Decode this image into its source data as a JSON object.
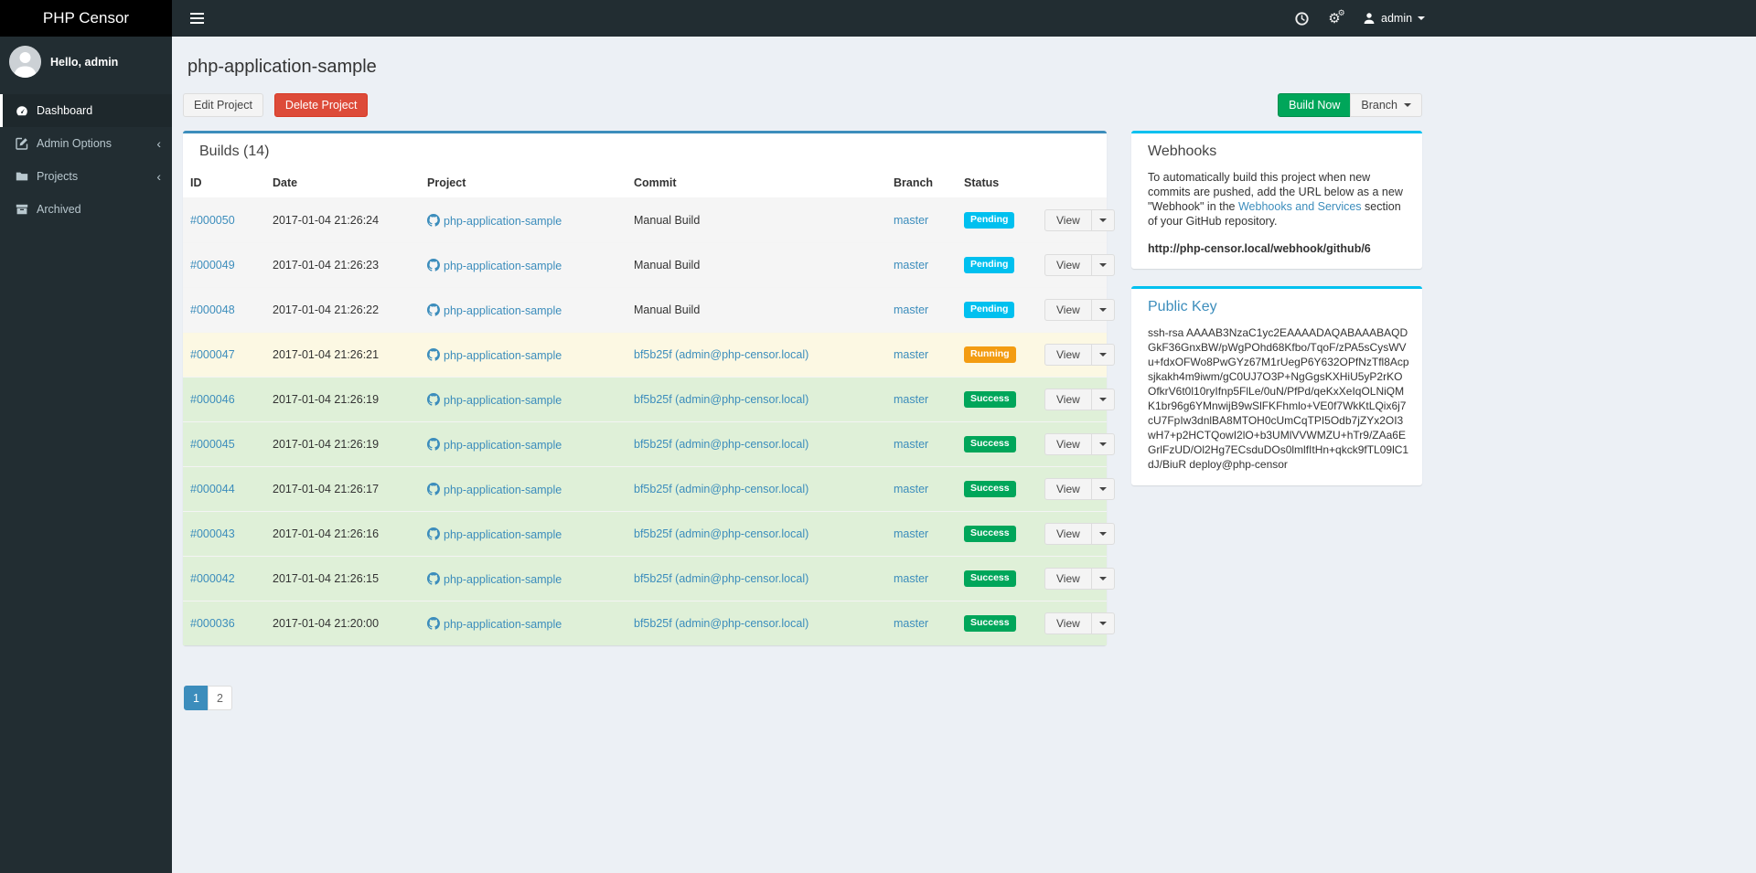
{
  "app": {
    "brand": "PHP Censor"
  },
  "navbar": {
    "user": "admin"
  },
  "sidebar": {
    "greeting": "Hello, admin",
    "items": [
      {
        "label": "Dashboard",
        "icon": "dashboard-icon",
        "active": true,
        "chevron": false
      },
      {
        "label": "Admin Options",
        "icon": "edit-icon",
        "active": false,
        "chevron": true
      },
      {
        "label": "Projects",
        "icon": "folder-icon",
        "active": false,
        "chevron": true
      },
      {
        "label": "Archived",
        "icon": "archive-icon",
        "active": false,
        "chevron": false
      }
    ]
  },
  "page": {
    "title": "php-application-sample",
    "edit_button": "Edit Project",
    "delete_button": "Delete Project",
    "build_now_button": "Build Now",
    "branch_button": "Branch"
  },
  "builds": {
    "panel_title": "Builds (14)",
    "columns": [
      "ID",
      "Date",
      "Project",
      "Commit",
      "Branch",
      "Status",
      ""
    ],
    "view_label": "View",
    "status_colors": {
      "Pending": "#00c0ef",
      "Running": "#f39c12",
      "Success": "#00a65a"
    },
    "row_colors": {
      "Pending": "#f5f5f5",
      "Running": "#fcf8e3",
      "Success": "#dff0d8"
    },
    "rows": [
      {
        "id": "#000050",
        "date": "2017-01-04 21:26:24",
        "project": "php-application-sample",
        "commit": "Manual Build",
        "commit_is_link": false,
        "branch": "master",
        "status": "Pending"
      },
      {
        "id": "#000049",
        "date": "2017-01-04 21:26:23",
        "project": "php-application-sample",
        "commit": "Manual Build",
        "commit_is_link": false,
        "branch": "master",
        "status": "Pending"
      },
      {
        "id": "#000048",
        "date": "2017-01-04 21:26:22",
        "project": "php-application-sample",
        "commit": "Manual Build",
        "commit_is_link": false,
        "branch": "master",
        "status": "Pending"
      },
      {
        "id": "#000047",
        "date": "2017-01-04 21:26:21",
        "project": "php-application-sample",
        "commit": "bf5b25f (admin@php-censor.local)",
        "commit_is_link": true,
        "branch": "master",
        "status": "Running"
      },
      {
        "id": "#000046",
        "date": "2017-01-04 21:26:19",
        "project": "php-application-sample",
        "commit": "bf5b25f (admin@php-censor.local)",
        "commit_is_link": true,
        "branch": "master",
        "status": "Success"
      },
      {
        "id": "#000045",
        "date": "2017-01-04 21:26:19",
        "project": "php-application-sample",
        "commit": "bf5b25f (admin@php-censor.local)",
        "commit_is_link": true,
        "branch": "master",
        "status": "Success"
      },
      {
        "id": "#000044",
        "date": "2017-01-04 21:26:17",
        "project": "php-application-sample",
        "commit": "bf5b25f (admin@php-censor.local)",
        "commit_is_link": true,
        "branch": "master",
        "status": "Success"
      },
      {
        "id": "#000043",
        "date": "2017-01-04 21:26:16",
        "project": "php-application-sample",
        "commit": "bf5b25f (admin@php-censor.local)",
        "commit_is_link": true,
        "branch": "master",
        "status": "Success"
      },
      {
        "id": "#000042",
        "date": "2017-01-04 21:26:15",
        "project": "php-application-sample",
        "commit": "bf5b25f (admin@php-censor.local)",
        "commit_is_link": true,
        "branch": "master",
        "status": "Success"
      },
      {
        "id": "#000036",
        "date": "2017-01-04 21:20:00",
        "project": "php-application-sample",
        "commit": "bf5b25f (admin@php-censor.local)",
        "commit_is_link": true,
        "branch": "master",
        "status": "Success"
      }
    ]
  },
  "pagination": {
    "pages": [
      {
        "label": "1",
        "active": true
      },
      {
        "label": "2",
        "active": false
      }
    ]
  },
  "webhooks": {
    "title": "Webhooks",
    "text_before": "To automatically build this project when new commits are pushed, add the URL below as a new \"Webhook\" in the ",
    "link_text": "Webhooks and Services",
    "text_after": " section of your GitHub repository.",
    "url": "http://php-censor.local/webhook/github/6"
  },
  "public_key": {
    "title": "Public Key",
    "key": "ssh-rsa AAAAB3NzaC1yc2EAAAADAQABAAABAQDGkF36GnxBW/pWgPOhd68Kfbo/TqoF/zPA5sCysWVu+fdxOFWo8PwGYz67M1rUegP6Y632OPfNzTfl8Acpsjkakh4m9iwm/gC0UJ7O3P+NgGgsKXHiU5yP2rKOOfkrV6t0l10ryIfnp5FlLe/0uN/PfPd/qeKxXeIqOLNiQMK1br96g6YMnwijB9wSlFKFhmlo+VE0f7WkKtLQix6j7cU7FpIw3dnlBA8MTOH0cUmCqTPI5Odb7jZYx2OI3wH7+p2HCTQowI2lO+b3UMlVVWMZU+hTr9/ZAa6EGrlFzUD/Ol2Hg7ECsduDOs0lmlfItHn+qkck9fTL09lC1dJ/BiuR deploy@php-censor"
  },
  "colors": {
    "accent_blue": "#3c8dbc",
    "info_cyan": "#00c0ef",
    "success_green": "#00a65a",
    "danger_red": "#dd4b39",
    "warning_orange": "#f39c12",
    "navbar_dark": "#222d32"
  }
}
